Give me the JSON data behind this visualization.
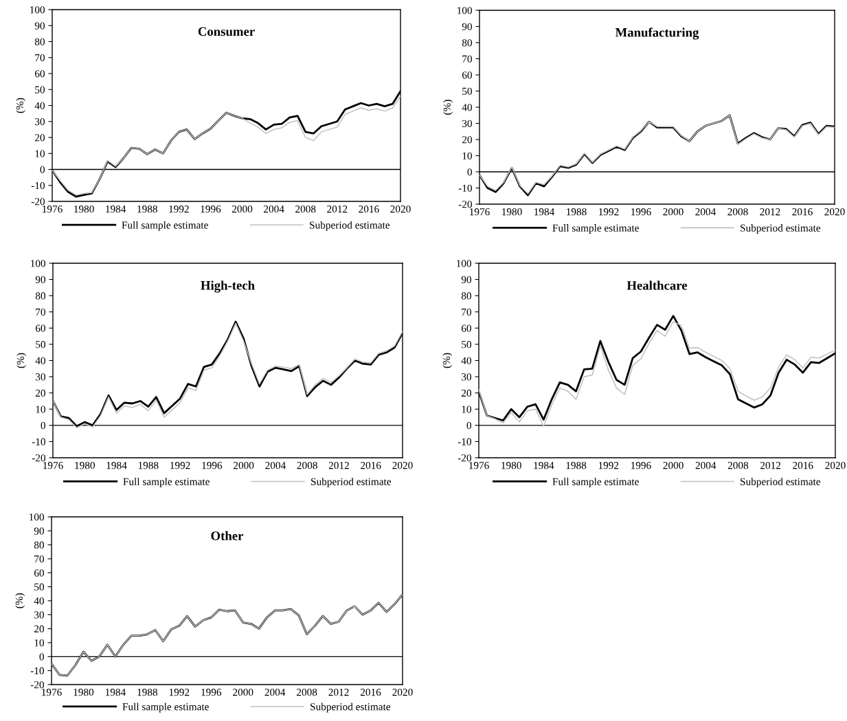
{
  "chart_data": [
    {
      "type": "line",
      "title": "Consumer",
      "ylabel": "(%)",
      "x": [
        1976,
        1977,
        1978,
        1979,
        1980,
        1981,
        1982,
        1983,
        1984,
        1985,
        1986,
        1987,
        1988,
        1989,
        1990,
        1991,
        1992,
        1993,
        1994,
        1995,
        1996,
        1997,
        1998,
        1999,
        2000,
        2001,
        2002,
        2003,
        2004,
        2005,
        2006,
        2007,
        2008,
        2009,
        2010,
        2011,
        2012,
        2013,
        2014,
        2015,
        2016,
        2017,
        2018,
        2019,
        2020
      ],
      "xlim": [
        1976,
        2020
      ],
      "xticks": [
        1976,
        1980,
        1984,
        1988,
        1992,
        1996,
        2000,
        2004,
        2008,
        2012,
        2016,
        2020
      ],
      "ylim": [
        -20,
        100
      ],
      "yticks": [
        -20,
        -10,
        0,
        10,
        20,
        30,
        40,
        50,
        60,
        70,
        80,
        90,
        100
      ],
      "grid": false,
      "legend": "bottom",
      "line_style": "solid",
      "marker": "none",
      "ref_lines": [
        {
          "axis": "y",
          "value": 0,
          "color": "#000000"
        }
      ],
      "series": [
        {
          "name": "Full sample estimate",
          "color": "#000000",
          "values": [
            -0.5,
            -8,
            -14,
            -17,
            -16,
            -15,
            -6,
            5,
            1.5,
            7,
            13.5,
            13,
            9.5,
            12.5,
            10,
            18,
            23.5,
            25,
            19,
            22.5,
            25.5,
            30.5,
            35.5,
            33.5,
            32,
            31.5,
            29,
            25,
            28,
            28.5,
            32.5,
            33.5,
            23.5,
            22.5,
            27,
            28.5,
            30,
            37.5,
            39.5,
            41.5,
            40,
            41,
            39.5,
            41,
            49
          ]
        },
        {
          "name": "Subperiod estimate",
          "color": "#c0c0c0",
          "values": [
            -0.5,
            -7,
            -13,
            -16,
            -15,
            -14.5,
            -6,
            5.5,
            2,
            7,
            13.5,
            13,
            9.5,
            12.5,
            10,
            18,
            23.5,
            25,
            19,
            22.5,
            25.5,
            30.5,
            35.5,
            33.5,
            32,
            29,
            26.5,
            22.5,
            25,
            26,
            29.5,
            30.5,
            20,
            18,
            23.5,
            25,
            26.5,
            34.5,
            36.5,
            38.5,
            37,
            38,
            36.5,
            38.5,
            46
          ]
        }
      ]
    },
    {
      "type": "line",
      "title": "Manufacturing",
      "ylabel": "(%)",
      "x": [
        1976,
        1977,
        1978,
        1979,
        1980,
        1981,
        1982,
        1983,
        1984,
        1985,
        1986,
        1987,
        1988,
        1989,
        1990,
        1991,
        1992,
        1993,
        1994,
        1995,
        1996,
        1997,
        1998,
        1999,
        2000,
        2001,
        2002,
        2003,
        2004,
        2005,
        2006,
        2007,
        2008,
        2009,
        2010,
        2011,
        2012,
        2013,
        2014,
        2015,
        2016,
        2017,
        2018,
        2019,
        2020
      ],
      "xlim": [
        1976,
        2020
      ],
      "xticks": [
        1976,
        1980,
        1984,
        1988,
        1992,
        1996,
        2000,
        2004,
        2008,
        2012,
        2016,
        2020
      ],
      "ylim": [
        -20,
        100
      ],
      "yticks": [
        -20,
        -10,
        0,
        10,
        20,
        30,
        40,
        50,
        60,
        70,
        80,
        90,
        100
      ],
      "grid": false,
      "legend": "bottom",
      "line_style": "solid",
      "marker": "none",
      "ref_lines": [
        {
          "axis": "y",
          "value": 0,
          "color": "#000000"
        }
      ],
      "series": [
        {
          "name": "Full sample estimate",
          "color": "#000000",
          "values": [
            -2,
            -10,
            -12.5,
            -7,
            2.5,
            -9,
            -14.5,
            -7,
            -9,
            -3,
            3.5,
            2.5,
            4.5,
            11,
            5.5,
            10.5,
            13,
            15.5,
            13.5,
            21,
            25,
            31,
            27.5,
            27.5,
            27.5,
            22,
            19,
            25,
            28.5,
            30,
            31.5,
            35,
            17.5,
            21,
            24,
            21.5,
            20,
            27,
            26.5,
            22,
            29,
            30.5,
            23.5,
            28.5,
            28
          ]
        },
        {
          "name": "Subperiod estimate",
          "color": "#c0c0c0",
          "values": [
            -2,
            -9,
            -11.5,
            -6.5,
            3,
            -8.5,
            -13.5,
            -6.5,
            -8,
            -2.5,
            4,
            3,
            5,
            11.5,
            6,
            11,
            13.5,
            16,
            14,
            21.5,
            25.5,
            31,
            28,
            28,
            28,
            22.5,
            19,
            25,
            28.5,
            30,
            31.5,
            35,
            17,
            20.5,
            23.5,
            21,
            20,
            27,
            26,
            21.5,
            28.5,
            30,
            23,
            28,
            27.5
          ]
        }
      ]
    },
    {
      "type": "line",
      "title": "High-tech",
      "ylabel": "(%)",
      "x": [
        1976,
        1977,
        1978,
        1979,
        1980,
        1981,
        1982,
        1983,
        1984,
        1985,
        1986,
        1987,
        1988,
        1989,
        1990,
        1991,
        1992,
        1993,
        1994,
        1995,
        1996,
        1997,
        1998,
        1999,
        2000,
        2001,
        2002,
        2003,
        2004,
        2005,
        2006,
        2007,
        2008,
        2009,
        2010,
        2011,
        2012,
        2013,
        2014,
        2015,
        2016,
        2017,
        2018,
        2019,
        2020
      ],
      "xlim": [
        1976,
        2020
      ],
      "xticks": [
        1976,
        1980,
        1984,
        1988,
        1992,
        1996,
        2000,
        2004,
        2008,
        2012,
        2016,
        2020
      ],
      "ylim": [
        -20,
        100
      ],
      "yticks": [
        -20,
        -10,
        0,
        10,
        20,
        30,
        40,
        50,
        60,
        70,
        80,
        90,
        100
      ],
      "grid": false,
      "legend": "bottom",
      "line_style": "solid",
      "marker": "none",
      "ref_lines": [
        {
          "axis": "y",
          "value": 0,
          "color": "#000000"
        }
      ],
      "series": [
        {
          "name": "Full sample estimate",
          "color": "#000000",
          "values": [
            15,
            5.5,
            4.5,
            -0.5,
            2,
            0,
            7,
            18.5,
            9.5,
            14,
            13.5,
            15,
            11.5,
            17.5,
            7.5,
            12,
            16.5,
            25.5,
            24,
            36,
            37.5,
            44.5,
            53,
            64,
            53.5,
            36.5,
            24,
            33,
            35.5,
            34.5,
            33.5,
            36.5,
            18,
            23.5,
            27.5,
            25,
            29.5,
            35,
            40,
            38,
            37.5,
            43.5,
            45,
            48,
            57
          ]
        },
        {
          "name": "Subperiod estimate",
          "color": "#c0c0c0",
          "values": [
            15,
            5,
            3.5,
            -1.5,
            1,
            -1,
            6,
            17.5,
            7.5,
            12,
            11,
            13,
            9,
            15.5,
            5,
            9.5,
            14,
            23,
            21.5,
            34,
            35.5,
            43,
            52,
            63,
            52,
            38,
            25.5,
            34,
            36.5,
            36,
            35,
            37.5,
            19,
            25,
            29,
            26.5,
            30.5,
            35.5,
            41,
            39,
            38.5,
            44.5,
            46,
            49,
            58
          ]
        }
      ]
    },
    {
      "type": "line",
      "title": "Healthcare",
      "ylabel": "(%)",
      "x": [
        1976,
        1977,
        1978,
        1979,
        1980,
        1981,
        1982,
        1983,
        1984,
        1985,
        1986,
        1987,
        1988,
        1989,
        1990,
        1991,
        1992,
        1993,
        1994,
        1995,
        1996,
        1997,
        1998,
        1999,
        2000,
        2001,
        2002,
        2003,
        2004,
        2005,
        2006,
        2007,
        2008,
        2009,
        2010,
        2011,
        2012,
        2013,
        2014,
        2015,
        2016,
        2017,
        2018,
        2019,
        2020
      ],
      "xlim": [
        1976,
        2020
      ],
      "xticks": [
        1976,
        1980,
        1984,
        1988,
        1992,
        1996,
        2000,
        2004,
        2008,
        2012,
        2016,
        2020
      ],
      "ylim": [
        -20,
        100
      ],
      "yticks": [
        -20,
        -10,
        0,
        10,
        20,
        30,
        40,
        50,
        60,
        70,
        80,
        90,
        100
      ],
      "grid": false,
      "legend": "bottom",
      "line_style": "solid",
      "marker": "none",
      "ref_lines": [
        {
          "axis": "y",
          "value": 0,
          "color": "#000000"
        }
      ],
      "series": [
        {
          "name": "Full sample estimate",
          "color": "#000000",
          "values": [
            21,
            6,
            4.5,
            3,
            10,
            5,
            11.5,
            13,
            3.5,
            16,
            26.5,
            25,
            21,
            34.5,
            35,
            52,
            39,
            28,
            25,
            41.5,
            45.5,
            54,
            62,
            59,
            67.5,
            58.5,
            44,
            45,
            42,
            39.5,
            37,
            31.5,
            16,
            13.5,
            11,
            13,
            18.5,
            32.5,
            40.5,
            37.5,
            32.5,
            39,
            38.5,
            41.5,
            44.5
          ]
        },
        {
          "name": "Subperiod estimate",
          "color": "#c0c0c0",
          "values": [
            22,
            6,
            4,
            1.5,
            8,
            2,
            9,
            10,
            -0.5,
            12.5,
            23,
            21,
            16,
            30,
            31,
            49,
            34,
            23,
            19,
            37,
            41,
            50.5,
            58.5,
            55,
            64,
            61.5,
            47.5,
            48,
            45,
            42.5,
            40,
            35,
            21,
            18,
            15.5,
            17.5,
            23,
            36,
            43.5,
            40.5,
            35.5,
            42,
            41.5,
            44,
            46.5
          ]
        }
      ]
    },
    {
      "type": "line",
      "title": "Other",
      "ylabel": "(%)",
      "x": [
        1976,
        1977,
        1978,
        1979,
        1980,
        1981,
        1982,
        1983,
        1984,
        1985,
        1986,
        1987,
        1988,
        1989,
        1990,
        1991,
        1992,
        1993,
        1994,
        1995,
        1996,
        1997,
        1998,
        1999,
        2000,
        2001,
        2002,
        2003,
        2004,
        2005,
        2006,
        2007,
        2008,
        2009,
        2010,
        2011,
        2012,
        2013,
        2014,
        2015,
        2016,
        2017,
        2018,
        2019,
        2020
      ],
      "xlim": [
        1976,
        2020
      ],
      "xticks": [
        1976,
        1980,
        1984,
        1988,
        1992,
        1996,
        2000,
        2004,
        2008,
        2012,
        2016,
        2020
      ],
      "ylim": [
        -20,
        100
      ],
      "yticks": [
        -20,
        -10,
        0,
        10,
        20,
        30,
        40,
        50,
        60,
        70,
        80,
        90,
        100
      ],
      "grid": false,
      "legend": "bottom",
      "line_style": "solid",
      "marker": "none",
      "ref_lines": [
        {
          "axis": "y",
          "value": 0,
          "color": "#000000"
        }
      ],
      "series": [
        {
          "name": "Full sample estimate",
          "color": "#000000",
          "values": [
            -5,
            -13,
            -13.5,
            -6,
            3.5,
            -3,
            0,
            8.5,
            0,
            8.5,
            15,
            15,
            16,
            19,
            11,
            19.5,
            22,
            29,
            21.5,
            26,
            28,
            33.5,
            32.5,
            33,
            24.5,
            23.5,
            20,
            28,
            33,
            33,
            34,
            29.5,
            16,
            22,
            29,
            23.5,
            25,
            33,
            36,
            30,
            33,
            38.5,
            32,
            37.5,
            44.5
          ]
        },
        {
          "name": "Subperiod estimate",
          "color": "#c0c0c0",
          "values": [
            -5,
            -13,
            -13.5,
            -6,
            3.5,
            -3,
            0,
            8.5,
            0,
            8.5,
            15,
            15,
            16,
            19,
            11,
            19.5,
            22,
            29,
            21.5,
            26,
            28,
            33.5,
            32.5,
            33,
            24.5,
            23.5,
            20,
            28,
            33,
            33,
            34,
            29.5,
            16,
            22,
            29,
            23.5,
            25,
            33,
            36,
            30,
            33,
            38.5,
            32,
            37.5,
            44.5
          ]
        }
      ]
    }
  ]
}
